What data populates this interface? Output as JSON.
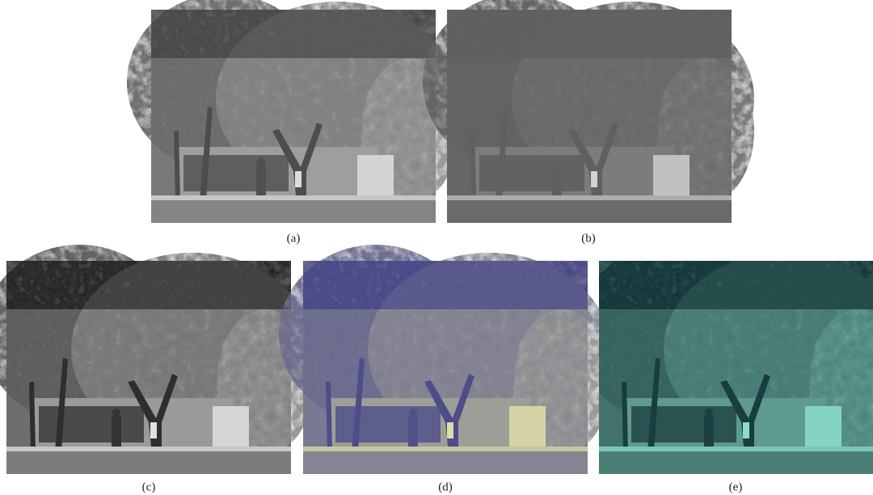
{
  "figure": {
    "captions": [
      "(a)",
      "(b)",
      "(c)",
      "(d)",
      "(e)"
    ]
  }
}
